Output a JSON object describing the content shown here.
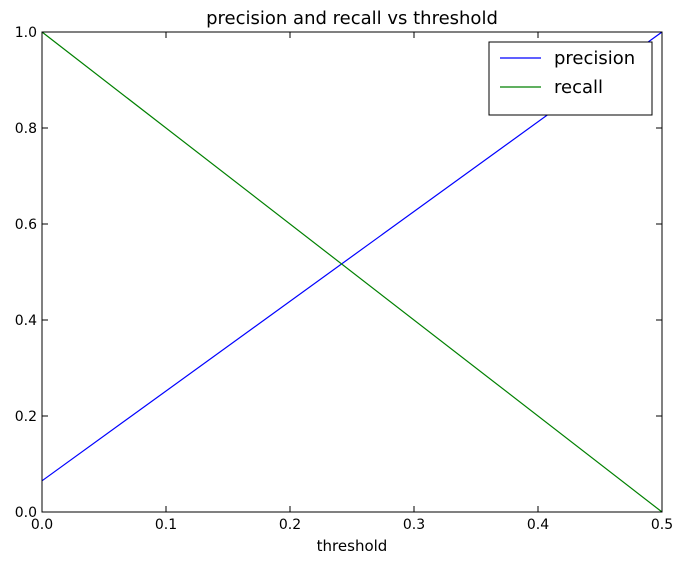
{
  "chart_data": {
    "type": "line",
    "title": "precision and recall vs threshold",
    "xlabel": "threshold",
    "ylabel": "",
    "xlim": [
      0.0,
      0.5
    ],
    "ylim": [
      0.0,
      1.0
    ],
    "xticks": [
      0.0,
      0.1,
      0.2,
      0.3,
      0.4,
      0.5
    ],
    "xtick_labels": [
      "0.0",
      "0.1",
      "0.2",
      "0.3",
      "0.4",
      "0.5"
    ],
    "yticks": [
      0.0,
      0.2,
      0.4,
      0.6,
      0.8,
      1.0
    ],
    "ytick_labels": [
      "0.0",
      "0.2",
      "0.4",
      "0.6",
      "0.8",
      "1.0"
    ],
    "grid": false,
    "legend_position": "top-right",
    "series": [
      {
        "name": "precision",
        "color": "#0000ff",
        "x": [
          0.0,
          0.5
        ],
        "y": [
          0.065,
          1.0
        ]
      },
      {
        "name": "recall",
        "color": "#008000",
        "x": [
          0.0,
          0.5
        ],
        "y": [
          1.0,
          0.0
        ]
      }
    ]
  }
}
